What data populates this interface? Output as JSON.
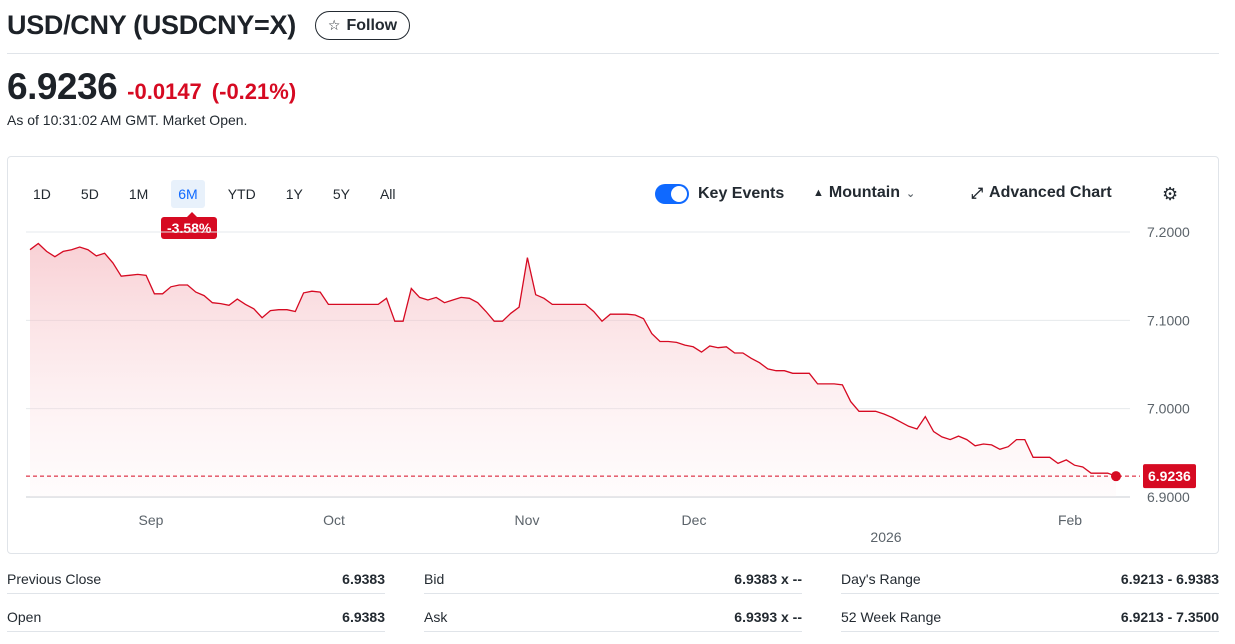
{
  "header": {
    "title": "USD/CNY (USDCNY=X)",
    "follow_label": "Follow",
    "follow_icon": "star-outline-icon"
  },
  "quote": {
    "price": "6.9236",
    "change": "-0.0147",
    "change_pct": "(-0.21%)",
    "as_of": "As of 10:31:02 AM GMT. Market Open.",
    "negative_color": "#d60a22"
  },
  "toolbar": {
    "ranges": [
      "1D",
      "5D",
      "1M",
      "6M",
      "YTD",
      "1Y",
      "5Y",
      "All"
    ],
    "active_range": "6M",
    "range_change": "-3.58%",
    "key_events_label": "Key Events",
    "key_events_on": true,
    "chart_type_label": "Mountain",
    "advanced_label": "Advanced Chart",
    "accent_color": "#0f69ff"
  },
  "chart_data": {
    "type": "area",
    "x_ticks": [
      "Sep",
      "Oct",
      "Nov",
      "Dec",
      "Feb"
    ],
    "year_label": "2026",
    "y_ticks": [
      "7.2000",
      "7.1000",
      "7.0000",
      "6.9000"
    ],
    "ylim": [
      6.89,
      7.2
    ],
    "current_value": "6.9236",
    "grid": true,
    "line_color": "#d60a22",
    "values": [
      7.18,
      7.187,
      7.178,
      7.172,
      7.178,
      7.18,
      7.183,
      7.18,
      7.173,
      7.176,
      7.165,
      7.15,
      7.151,
      7.152,
      7.151,
      7.13,
      7.13,
      7.138,
      7.14,
      7.14,
      7.132,
      7.128,
      7.12,
      7.119,
      7.117,
      7.124,
      7.118,
      7.113,
      7.103,
      7.111,
      7.112,
      7.112,
      7.11,
      7.131,
      7.133,
      7.132,
      7.118,
      7.118,
      7.118,
      7.118,
      7.118,
      7.118,
      7.118,
      7.125,
      7.099,
      7.099,
      7.136,
      7.126,
      7.123,
      7.126,
      7.12,
      7.123,
      7.126,
      7.125,
      7.12,
      7.11,
      7.099,
      7.099,
      7.108,
      7.115,
      7.171,
      7.129,
      7.125,
      7.118,
      7.118,
      7.118,
      7.118,
      7.118,
      7.11,
      7.099,
      7.107,
      7.107,
      7.107,
      7.106,
      7.102,
      7.085,
      7.076,
      7.076,
      7.075,
      7.072,
      7.07,
      7.064,
      7.071,
      7.069,
      7.07,
      7.063,
      7.063,
      7.057,
      7.052,
      7.045,
      7.043,
      7.043,
      7.04,
      7.04,
      7.04,
      7.028,
      7.028,
      7.028,
      7.027,
      7.008,
      6.997,
      6.997,
      6.997,
      6.994,
      6.99,
      6.985,
      6.98,
      6.977,
      6.991,
      6.974,
      6.968,
      6.965,
      6.969,
      6.965,
      6.958,
      6.96,
      6.959,
      6.954,
      6.957,
      6.965,
      6.965,
      6.945,
      6.945,
      6.945,
      6.938,
      6.942,
      6.936,
      6.934,
      6.927,
      6.927,
      6.927,
      6.9236
    ]
  },
  "stats": {
    "col1": [
      {
        "label": "Previous Close",
        "value": "6.9383"
      },
      {
        "label": "Open",
        "value": "6.9383"
      }
    ],
    "col2": [
      {
        "label": "Bid",
        "value": "6.9383 x --"
      },
      {
        "label": "Ask",
        "value": "6.9393 x --"
      }
    ],
    "col3": [
      {
        "label": "Day's Range",
        "value": "6.9213 - 6.9383"
      },
      {
        "label": "52 Week Range",
        "value": "6.9213 - 7.3500"
      }
    ]
  }
}
